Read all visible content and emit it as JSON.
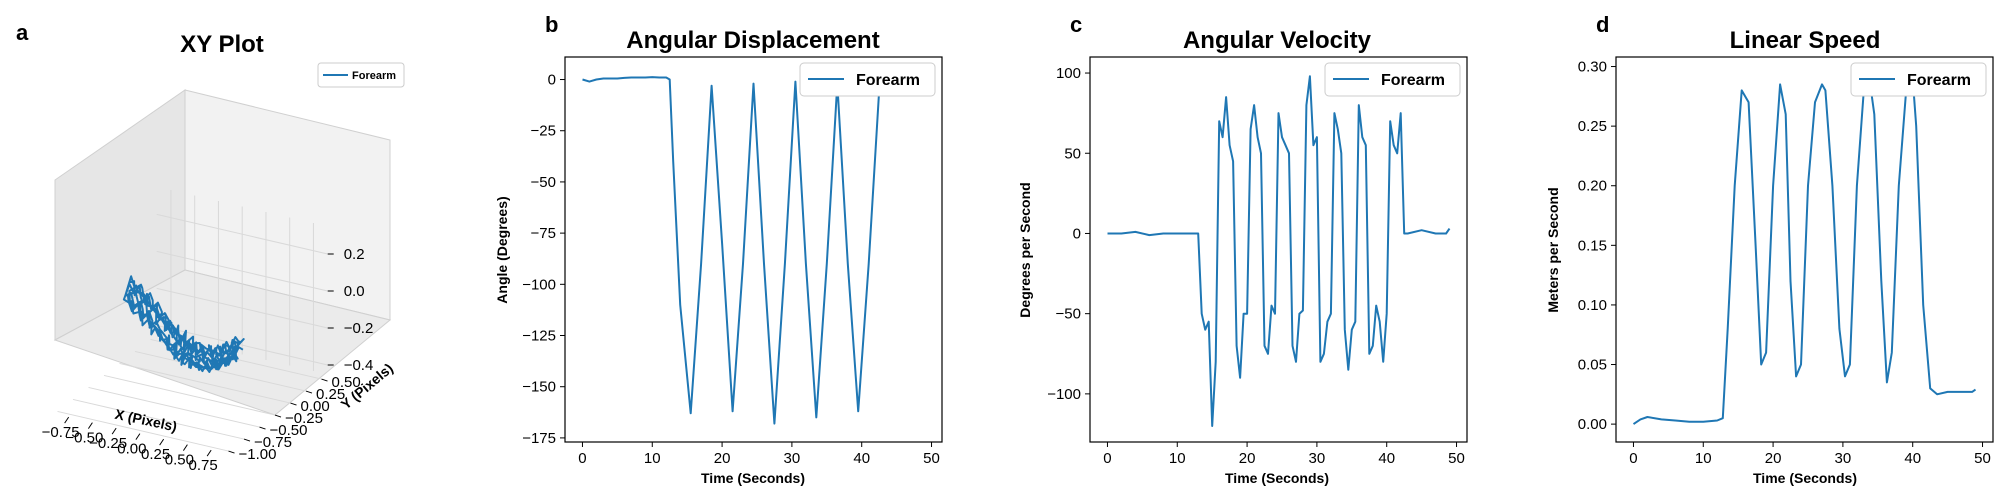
{
  "figure": {
    "series_color": "#1f77b4",
    "pane_colors": {
      "back": "#f2f2f2",
      "side": "#e6e6e6",
      "floor": "#ebebeb"
    }
  },
  "chart_data": [
    {
      "panel": "a",
      "type": "line3d",
      "title": "XY Plot",
      "xlabel": "X (Pixels)",
      "ylabel": "Y (Pixels)",
      "zlabel": "",
      "legend": "top-right",
      "series": [
        {
          "name": "Forearm",
          "description": "repeated sweeping trajectory, x from about -0.75 to 0.75"
        }
      ],
      "xticks": [
        "−0.75",
        "−0.50",
        "−0.25",
        "0.00",
        "0.25",
        "0.50",
        "0.75"
      ],
      "yticks": [
        "−1.00",
        "−0.75",
        "−0.50",
        "−0.25",
        "0.00",
        "0.25",
        "0.50"
      ],
      "zticks": [
        "0.2",
        "0.0",
        "−0.2",
        "−0.4"
      ],
      "xlim": [
        -0.9,
        0.9
      ],
      "ylim": [
        -1.05,
        0.6
      ],
      "zlim": [
        -0.45,
        0.35
      ]
    },
    {
      "panel": "b",
      "type": "line",
      "title": "Angular Displacement",
      "xlabel": "Time (Seconds)",
      "ylabel": "Angle (Degrees)",
      "legend": "top-right",
      "xlim": [
        -2.5,
        51.5
      ],
      "ylim": [
        -177,
        11
      ],
      "xticks": [
        0,
        10,
        20,
        30,
        40,
        50
      ],
      "yticks": [
        0,
        -25,
        -50,
        -75,
        -100,
        -125,
        -150,
        -175
      ],
      "ytick_labels": [
        "0",
        "−25",
        "−50",
        "−75",
        "−100",
        "−125",
        "−150",
        "−175"
      ],
      "series": [
        {
          "name": "Forearm",
          "x": [
            0,
            1,
            2,
            3,
            4,
            5,
            6,
            7,
            8,
            9,
            10,
            11,
            12,
            12.5,
            13,
            14,
            15.5,
            17,
            18.5,
            20,
            21.5,
            23,
            24.5,
            26,
            27.5,
            29,
            30.5,
            32,
            33.5,
            35,
            36.5,
            38,
            39.5,
            41,
            42.5
          ],
          "y": [
            0,
            -1,
            0,
            0.5,
            0.5,
            0.5,
            0.8,
            1,
            1,
            1,
            1.2,
            1,
            1,
            0,
            -40,
            -110,
            -163,
            -90,
            -3,
            -80,
            -162,
            -90,
            -2,
            -90,
            -168,
            -90,
            -1,
            -90,
            -165,
            -90,
            -2,
            -90,
            -162,
            -90,
            -5
          ]
        }
      ]
    },
    {
      "panel": "c",
      "type": "line",
      "title": "Angular Velocity",
      "xlabel": "Time (Seconds)",
      "ylabel": "Degrees per Second",
      "legend": "top-right",
      "xlim": [
        -2.5,
        51.5
      ],
      "ylim": [
        -130,
        110
      ],
      "xticks": [
        0,
        10,
        20,
        30,
        40,
        50
      ],
      "yticks": [
        100,
        50,
        0,
        -50,
        -100
      ],
      "ytick_labels": [
        "100",
        "50",
        "0",
        "−50",
        "−100"
      ],
      "series": [
        {
          "name": "Forearm",
          "x": [
            0,
            2,
            4,
            6,
            8,
            10,
            12,
            13,
            13.5,
            14,
            14.5,
            15,
            15.5,
            16,
            16.5,
            17,
            17.5,
            18,
            18.5,
            19,
            19.5,
            20,
            20.5,
            21,
            21.5,
            22,
            22.5,
            23,
            23.5,
            24,
            24.5,
            25,
            25.5,
            26,
            26.5,
            27,
            27.5,
            28,
            28.5,
            29,
            29.5,
            30,
            30.5,
            31,
            31.5,
            32,
            32.5,
            33,
            33.5,
            34,
            34.5,
            35,
            35.5,
            36,
            36.5,
            37,
            37.5,
            38,
            38.5,
            39,
            39.5,
            40,
            40.5,
            41,
            41.5,
            42,
            42.5,
            43,
            45,
            47,
            48.5,
            49
          ],
          "y": [
            0,
            0,
            1,
            -1,
            0,
            0,
            0,
            0,
            -50,
            -60,
            -55,
            -120,
            -80,
            70,
            60,
            85,
            55,
            45,
            -70,
            -90,
            -50,
            -50,
            65,
            80,
            60,
            50,
            -70,
            -75,
            -45,
            -50,
            75,
            60,
            55,
            50,
            -70,
            -80,
            -50,
            -48,
            80,
            98,
            55,
            60,
            -80,
            -75,
            -55,
            -50,
            75,
            65,
            50,
            -60,
            -85,
            -60,
            -55,
            80,
            60,
            55,
            -75,
            -70,
            -45,
            -55,
            -80,
            -50,
            70,
            55,
            50,
            75,
            0,
            0,
            2,
            0,
            0,
            3
          ]
        }
      ]
    },
    {
      "panel": "d",
      "type": "line",
      "title": "Linear Speed",
      "xlabel": "Time (Seconds)",
      "ylabel": "Meters per Second",
      "legend": "top-right",
      "xlim": [
        -2.5,
        51.5
      ],
      "ylim": [
        -0.015,
        0.308
      ],
      "xticks": [
        0,
        10,
        20,
        30,
        40,
        50
      ],
      "yticks": [
        0.0,
        0.05,
        0.1,
        0.15,
        0.2,
        0.25,
        0.3
      ],
      "ytick_labels": [
        "0.00",
        "0.05",
        "0.10",
        "0.15",
        "0.20",
        "0.25",
        "0.30"
      ],
      "series": [
        {
          "name": "Forearm",
          "x": [
            0,
            1,
            2,
            4,
            6,
            8,
            10,
            12,
            12.8,
            13.5,
            14.5,
            15.5,
            16.5,
            17.5,
            18.3,
            19,
            20,
            21,
            21.8,
            22.5,
            23.3,
            24,
            25,
            26,
            27,
            27.5,
            28.5,
            29.5,
            30.3,
            31,
            32,
            33,
            33.8,
            34.5,
            35.5,
            36.3,
            37,
            38,
            39,
            40,
            40.5,
            41.5,
            42.5,
            43.5,
            45,
            47,
            48.5,
            49
          ],
          "y": [
            0,
            0.004,
            0.006,
            0.004,
            0.003,
            0.002,
            0.002,
            0.003,
            0.005,
            0.08,
            0.2,
            0.28,
            0.27,
            0.15,
            0.05,
            0.06,
            0.2,
            0.285,
            0.26,
            0.12,
            0.04,
            0.05,
            0.2,
            0.27,
            0.285,
            0.28,
            0.2,
            0.08,
            0.04,
            0.05,
            0.2,
            0.28,
            0.29,
            0.26,
            0.12,
            0.035,
            0.06,
            0.2,
            0.275,
            0.29,
            0.25,
            0.1,
            0.03,
            0.025,
            0.027,
            0.027,
            0.027,
            0.029
          ]
        }
      ]
    }
  ],
  "panels": {
    "a": {
      "letter": "a",
      "title": "XY Plot",
      "legend": "Forearm",
      "xlabel": "X (Pixels)",
      "ylabel": "Y (Pixels)"
    },
    "b": {
      "letter": "b",
      "title": "Angular Displacement",
      "legend": "Forearm",
      "xlabel": "Time (Seconds)",
      "ylabel": "Angle (Degrees)"
    },
    "c": {
      "letter": "c",
      "title": "Angular Velocity",
      "legend": "Forearm",
      "xlabel": "Time (Seconds)",
      "ylabel": "Degrees per Second"
    },
    "d": {
      "letter": "d",
      "title": "Linear Speed",
      "legend": "Forearm",
      "xlabel": "Time (Seconds)",
      "ylabel": "Meters per Second"
    }
  }
}
